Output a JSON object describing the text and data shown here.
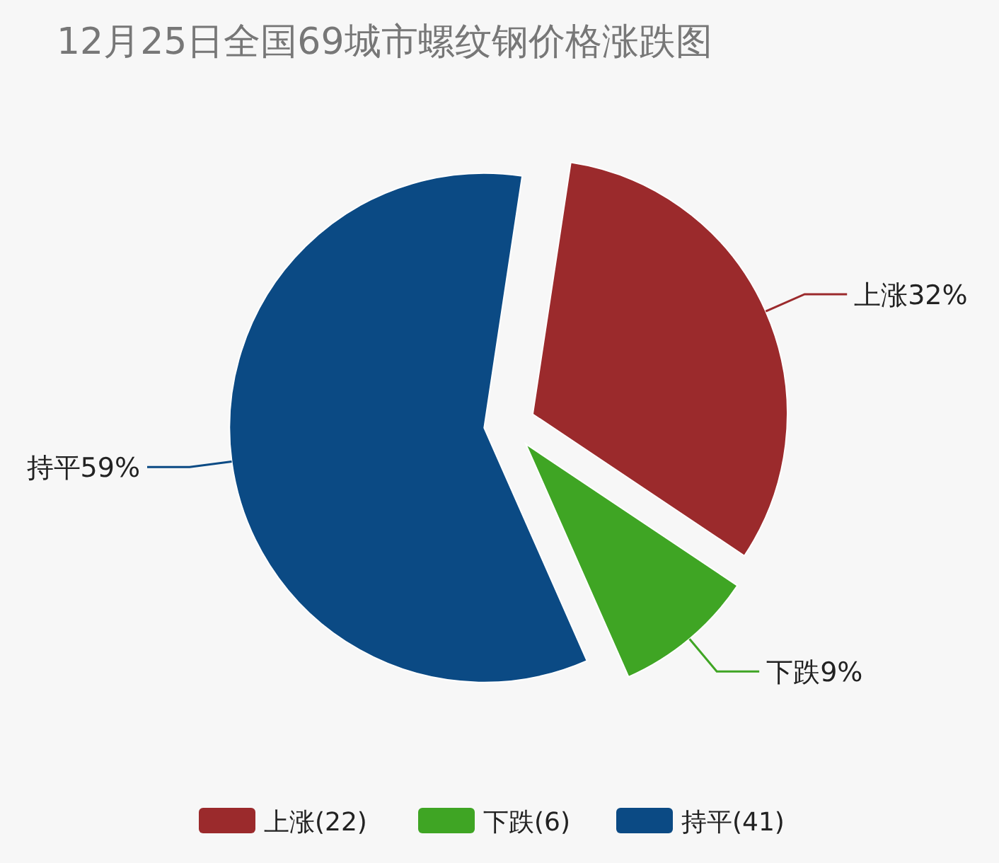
{
  "chart_data": {
    "type": "pie",
    "title": "12月25日全国69城市螺纹钢价格涨跌图",
    "categories": [
      "上涨(22)",
      "下跌(6)",
      "持平(41)"
    ],
    "values": [
      32,
      9,
      59
    ],
    "value_labels": [
      "上涨32%",
      "下跌9%",
      "持平59%"
    ],
    "colors": [
      "#9b2a2c",
      "#3fa524",
      "#0b4a84"
    ],
    "legend": "bottom"
  }
}
